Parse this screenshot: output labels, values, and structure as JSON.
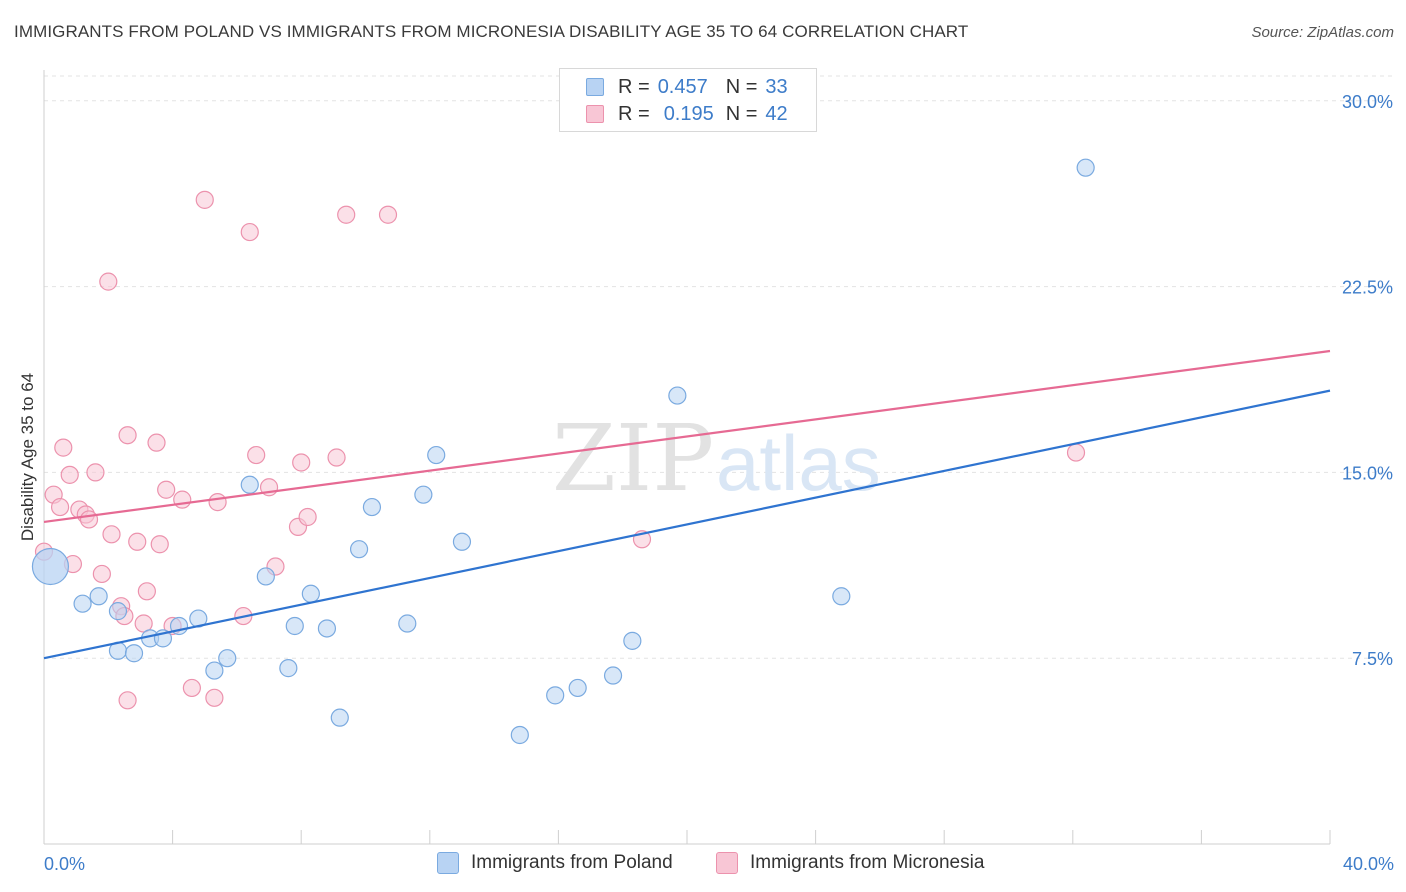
{
  "header": {
    "title": "IMMIGRANTS FROM POLAND VS IMMIGRANTS FROM MICRONESIA DISABILITY AGE 35 TO 64 CORRELATION CHART",
    "source": "Source: ZipAtlas.com"
  },
  "legend": {
    "r_label": "R =",
    "n_label": "N =",
    "rows": [
      {
        "r": "0.457",
        "n": "33"
      },
      {
        "r": "0.195",
        "n": "42"
      }
    ]
  },
  "bottom_legend": {
    "poland": "Immigrants from Poland",
    "micronesia": "Immigrants from Micronesia"
  },
  "colors": {
    "poland_fill": "#b8d3f3",
    "poland_stroke": "#7aaae0",
    "poland_line": "#2f74d0",
    "micronesia_fill": "#f8c6d5",
    "micronesia_stroke": "#ec92ad",
    "micronesia_line": "#e66a93",
    "tick_text": "#3d7cc9"
  },
  "chart_data": {
    "type": "scatter",
    "title": "IMMIGRANTS FROM POLAND VS IMMIGRANTS FROM MICRONESIA DISABILITY AGE 35 TO 64 CORRELATION CHART",
    "xlabel": "",
    "ylabel": "Disability Age 35 to 64",
    "xlim": [
      0,
      40
    ],
    "ylim": [
      0,
      31
    ],
    "x_tick_labels": [
      "0.0%",
      "40.0%"
    ],
    "y_ticks": [
      7.5,
      15.0,
      22.5,
      30.0
    ],
    "y_tick_labels": [
      "7.5%",
      "15.0%",
      "22.5%",
      "30.0%"
    ],
    "watermark": {
      "part1": "ZIP",
      "part2": "atlas"
    },
    "series": [
      {
        "name": "Immigrants from Poland",
        "r": 0.457,
        "n": 33,
        "trend": [
          [
            0,
            7.5
          ],
          [
            40,
            18.3
          ]
        ],
        "points": [
          [
            0.2,
            11.2,
            "big"
          ],
          [
            1.2,
            9.7
          ],
          [
            1.7,
            10.0
          ],
          [
            2.3,
            9.4
          ],
          [
            2.3,
            7.8
          ],
          [
            2.8,
            7.7
          ],
          [
            3.3,
            8.3
          ],
          [
            3.7,
            8.3
          ],
          [
            4.2,
            8.8
          ],
          [
            4.8,
            9.1
          ],
          [
            5.3,
            7.0
          ],
          [
            5.7,
            7.5
          ],
          [
            6.4,
            14.5
          ],
          [
            6.9,
            10.8
          ],
          [
            7.6,
            7.1
          ],
          [
            7.8,
            8.8
          ],
          [
            8.3,
            10.1
          ],
          [
            8.8,
            8.7
          ],
          [
            9.2,
            5.1
          ],
          [
            9.8,
            11.9
          ],
          [
            10.2,
            13.6
          ],
          [
            11.3,
            8.9
          ],
          [
            11.8,
            14.1
          ],
          [
            12.2,
            15.7
          ],
          [
            13.0,
            12.2
          ],
          [
            14.8,
            4.4
          ],
          [
            15.9,
            6.0
          ],
          [
            16.6,
            6.3
          ],
          [
            17.7,
            6.8
          ],
          [
            18.3,
            8.2
          ],
          [
            19.7,
            18.1
          ],
          [
            24.8,
            10.0
          ],
          [
            32.4,
            27.3
          ]
        ]
      },
      {
        "name": "Immigrants from Micronesia",
        "r": 0.195,
        "n": 42,
        "trend": [
          [
            0,
            13.0
          ],
          [
            40,
            19.9
          ]
        ],
        "points": [
          [
            0.0,
            11.8
          ],
          [
            0.3,
            14.1
          ],
          [
            0.5,
            13.6
          ],
          [
            0.6,
            16.0
          ],
          [
            0.8,
            14.9
          ],
          [
            0.9,
            11.3
          ],
          [
            1.1,
            13.5
          ],
          [
            1.3,
            13.3
          ],
          [
            1.4,
            13.1
          ],
          [
            1.6,
            15.0
          ],
          [
            1.8,
            10.9
          ],
          [
            2.0,
            22.7
          ],
          [
            2.1,
            12.5
          ],
          [
            2.4,
            9.6
          ],
          [
            2.5,
            9.2
          ],
          [
            2.6,
            5.8
          ],
          [
            2.6,
            16.5
          ],
          [
            2.9,
            12.2
          ],
          [
            3.1,
            8.9
          ],
          [
            3.2,
            10.2
          ],
          [
            3.5,
            16.2
          ],
          [
            3.6,
            12.1
          ],
          [
            3.8,
            14.3
          ],
          [
            4.0,
            8.8
          ],
          [
            4.3,
            13.9
          ],
          [
            4.6,
            6.3
          ],
          [
            5.0,
            26.0
          ],
          [
            5.3,
            5.9
          ],
          [
            5.4,
            13.8
          ],
          [
            6.2,
            9.2
          ],
          [
            6.4,
            24.7
          ],
          [
            6.6,
            15.7
          ],
          [
            7.0,
            14.4
          ],
          [
            7.2,
            11.2
          ],
          [
            7.9,
            12.8
          ],
          [
            8.0,
            15.4
          ],
          [
            8.2,
            13.2
          ],
          [
            9.1,
            15.6
          ],
          [
            9.4,
            25.4
          ],
          [
            10.7,
            25.4
          ],
          [
            18.6,
            12.3
          ],
          [
            32.1,
            15.8
          ]
        ]
      }
    ]
  }
}
